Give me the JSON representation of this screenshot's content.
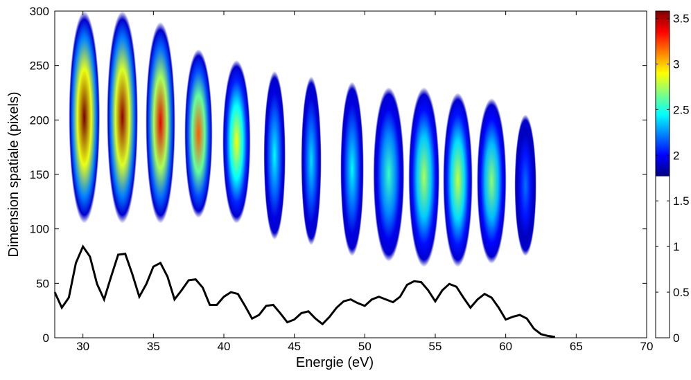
{
  "chart_data": {
    "type": "heatmap-profile",
    "xlabel": "Energie (eV)",
    "ylabel": "Dimension spatiale (pixels)",
    "xlim": [
      28,
      70
    ],
    "xticks": [
      30,
      35,
      40,
      45,
      50,
      55,
      60,
      65,
      70
    ],
    "ylim": [
      0,
      300
    ],
    "yticks": [
      0,
      50,
      100,
      150,
      200,
      250,
      300
    ],
    "y2lim": [
      0,
      3.58
    ],
    "y2ticks": [
      0,
      0.5,
      1,
      1.5,
      2,
      2.5,
      3,
      3.5
    ],
    "clim": [
      1.77,
      3.58
    ],
    "colormap": "jet",
    "harmonics": [
      {
        "energy": 30.1,
        "width": 2.0,
        "y_low": 105,
        "y_high": 300,
        "peak": 3.6
      },
      {
        "energy": 32.8,
        "width": 2.0,
        "y_low": 105,
        "y_high": 300,
        "peak": 3.55
      },
      {
        "energy": 35.5,
        "width": 1.9,
        "y_low": 105,
        "y_high": 290,
        "peak": 3.4
      },
      {
        "energy": 38.2,
        "width": 1.8,
        "y_low": 110,
        "y_high": 265,
        "peak": 3.2
      },
      {
        "energy": 40.9,
        "width": 1.8,
        "y_low": 105,
        "y_high": 255,
        "peak": 2.9
      },
      {
        "energy": 43.6,
        "width": 1.4,
        "y_low": 90,
        "y_high": 245,
        "peak": 2.45
      },
      {
        "energy": 46.2,
        "width": 1.3,
        "y_low": 85,
        "y_high": 240,
        "peak": 2.4
      },
      {
        "energy": 49.1,
        "width": 1.5,
        "y_low": 75,
        "y_high": 235,
        "peak": 2.45
      },
      {
        "energy": 51.7,
        "width": 2.0,
        "y_low": 70,
        "y_high": 230,
        "peak": 2.55
      },
      {
        "energy": 54.2,
        "width": 2.0,
        "y_low": 65,
        "y_high": 230,
        "peak": 2.75
      },
      {
        "energy": 56.6,
        "width": 1.9,
        "y_low": 65,
        "y_high": 225,
        "peak": 2.8
      },
      {
        "energy": 59.0,
        "width": 1.9,
        "y_low": 68,
        "y_high": 220,
        "peak": 2.7
      },
      {
        "energy": 61.4,
        "width": 1.4,
        "y_low": 75,
        "y_high": 205,
        "peak": 2.2
      }
    ],
    "x": [
      28,
      28.5,
      29,
      29.5,
      30,
      30.5,
      31,
      31.5,
      32,
      32.5,
      33,
      33.5,
      34,
      34.5,
      35,
      35.5,
      36,
      36.5,
      37,
      37.5,
      38,
      38.5,
      39,
      39.5,
      40,
      40.5,
      41,
      41.5,
      42,
      42.5,
      43,
      43.5,
      44,
      44.5,
      45,
      45.5,
      46,
      46.5,
      47,
      47.5,
      48,
      48.5,
      49,
      49.5,
      50,
      50.5,
      51,
      51.5,
      52,
      52.5,
      53,
      53.5,
      54,
      54.5,
      55,
      55.5,
      56,
      56.5,
      57,
      57.5,
      58,
      58.5,
      59,
      59.5,
      60,
      60.5,
      61,
      61.5,
      62,
      62.5,
      63,
      63.5
    ],
    "series": [
      {
        "color": "#000000",
        "axis": "y2",
        "values": [
          0.5,
          0.33,
          0.44,
          0.82,
          1.0,
          0.89,
          0.59,
          0.42,
          0.67,
          0.91,
          0.92,
          0.7,
          0.45,
          0.59,
          0.78,
          0.82,
          0.67,
          0.42,
          0.52,
          0.63,
          0.64,
          0.55,
          0.36,
          0.36,
          0.45,
          0.5,
          0.48,
          0.35,
          0.21,
          0.25,
          0.35,
          0.36,
          0.27,
          0.17,
          0.2,
          0.27,
          0.29,
          0.21,
          0.15,
          0.23,
          0.33,
          0.4,
          0.42,
          0.38,
          0.35,
          0.42,
          0.45,
          0.42,
          0.39,
          0.45,
          0.58,
          0.62,
          0.61,
          0.52,
          0.4,
          0.52,
          0.59,
          0.56,
          0.44,
          0.33,
          0.42,
          0.48,
          0.44,
          0.33,
          0.2,
          0.23,
          0.25,
          0.21,
          0.1,
          0.04,
          0.02,
          0.01
        ]
      }
    ]
  }
}
